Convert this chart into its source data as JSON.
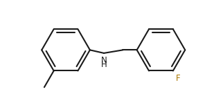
{
  "background": "#ffffff",
  "bond_color": "#1a1a1a",
  "N_color": "#1a1a1a",
  "F_color": "#aa7700",
  "lw": 1.5,
  "figsize": [
    3.22,
    1.52
  ],
  "dpi": 100,
  "xlim": [
    0.05,
    3.55
  ],
  "ylim": [
    0.02,
    1.18
  ]
}
